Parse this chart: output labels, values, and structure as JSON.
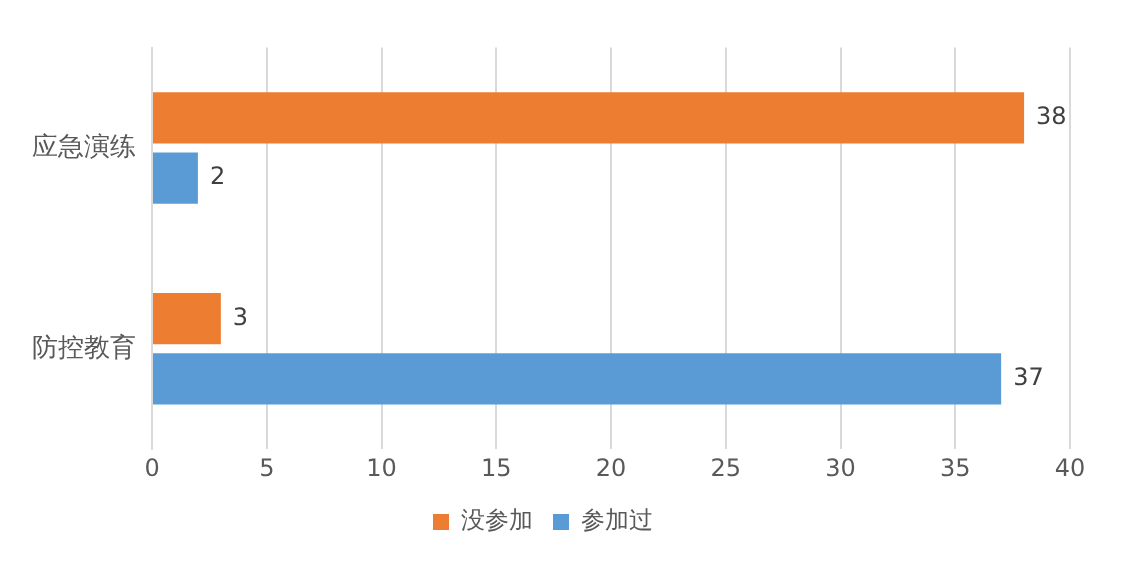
{
  "chart_data": {
    "type": "bar",
    "orientation": "horizontal",
    "categories": [
      "应急演练",
      "防控教育"
    ],
    "series": [
      {
        "name": "没参加",
        "color": "#ed7d31",
        "values": [
          38,
          3
        ]
      },
      {
        "name": "参加过",
        "color": "#5b9bd5",
        "values": [
          2,
          37
        ]
      }
    ],
    "xlim": [
      0,
      40
    ],
    "xticks": [
      0,
      5,
      10,
      15,
      20,
      25,
      30,
      35,
      40
    ],
    "grid": "x",
    "legend": "bottom",
    "data_labels": true
  }
}
